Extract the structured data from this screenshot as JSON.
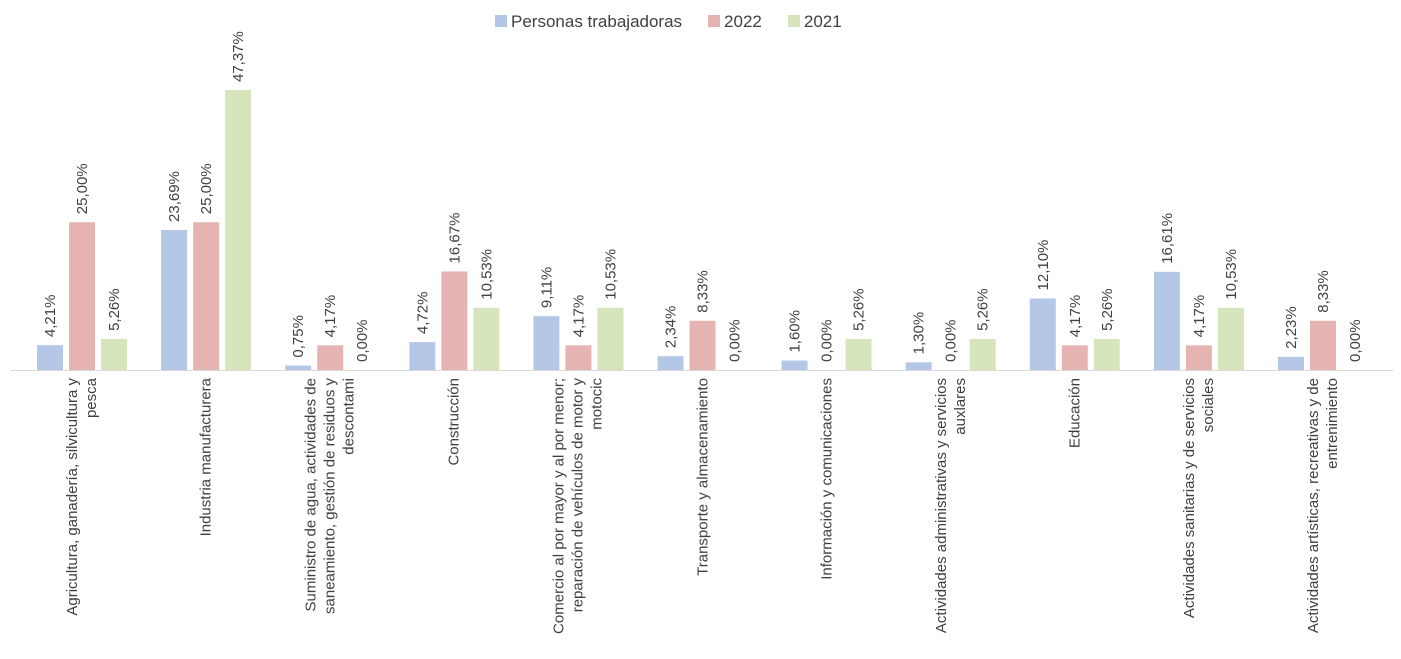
{
  "chart_data": {
    "type": "bar",
    "categories": [
      "Agricultura, ganadería, silvicultura y pesca",
      "Industria manufacturera",
      "Suministro de agua, actividades de saneamiento, gestión de residuos y descontami",
      "Construcción",
      "Comercio al por mayor y al por menor; reparación de vehículos de motor y motocic",
      "Transporte y almacenamiento",
      "Información y comunicaciones",
      "Actividades administrativas y servicios auxlares",
      "Educación",
      "Actividades sanitarias y de servicios sociales",
      "Actividades artísticas, recreativas y de entrenimiento"
    ],
    "series": [
      {
        "name": "Personas trabajadoras",
        "color": "#b4c7e7",
        "values": [
          4.21,
          23.69,
          0.75,
          4.72,
          9.11,
          2.34,
          1.6,
          1.3,
          12.1,
          16.61,
          2.23
        ],
        "value_labels": [
          "4,21%",
          "23,69%",
          "0,75%",
          "4,72%",
          "9,11%",
          "2,34%",
          "1,60%",
          "1,30%",
          "12,10%",
          "16,61%",
          "2,23%"
        ]
      },
      {
        "name": "2022",
        "color": "#e6b3b3",
        "values": [
          25.0,
          25.0,
          4.17,
          16.67,
          4.17,
          8.33,
          0.0,
          0.0,
          4.17,
          4.17,
          8.33
        ],
        "value_labels": [
          "25,00%",
          "25,00%",
          "4,17%",
          "16,67%",
          "4,17%",
          "8,33%",
          "0,00%",
          "0,00%",
          "4,17%",
          "4,17%",
          "8,33%"
        ]
      },
      {
        "name": "2021",
        "color": "#d6e5bb",
        "values": [
          5.26,
          47.37,
          0.0,
          10.53,
          10.53,
          0.0,
          5.26,
          5.26,
          5.26,
          10.53,
          0.0
        ],
        "value_labels": [
          "5,26%",
          "47,37%",
          "0,00%",
          "10,53%",
          "10,53%",
          "0,00%",
          "5,26%",
          "5,26%",
          "5,26%",
          "10,53%",
          "0,00%"
        ]
      }
    ],
    "legend": "top"
  }
}
